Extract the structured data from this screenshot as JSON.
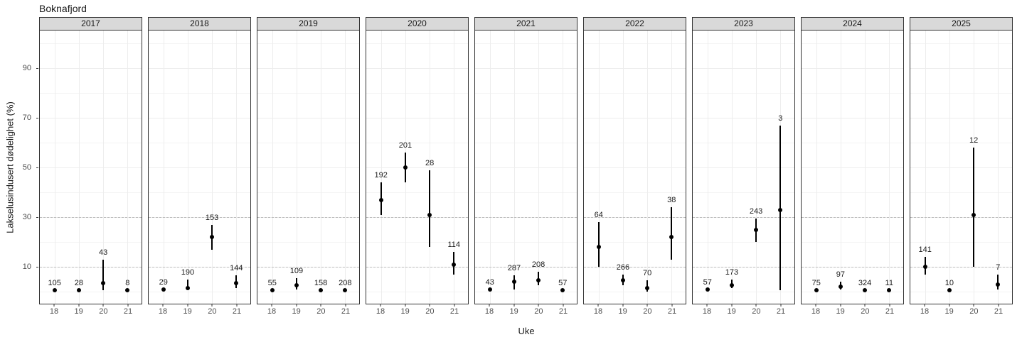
{
  "title": "Boknafjord",
  "y_axis": {
    "label": "Lakselusindusert dødelighet (%)",
    "tick_labels": [
      "90",
      "70",
      "50",
      "30",
      "10"
    ],
    "tick_values": [
      90,
      70,
      50,
      30,
      10
    ]
  },
  "x_axis": {
    "label": "Uke",
    "tick_labels": [
      "18",
      "19",
      "20",
      "21"
    ]
  },
  "colors": {
    "strip_background": "#d9d9d9",
    "panel_border": "#333333",
    "grid_major": "#ededed",
    "grid_minor": "#f4f4f4",
    "threshold_dashed": "#bdbdbd",
    "point": "#000000"
  },
  "chart_data": {
    "type": "scatter",
    "title": "Boknafjord",
    "xlabel": "Uke",
    "ylabel": "Lakselusindusert dødelighet (%)",
    "ylim": [
      0,
      105
    ],
    "x": [
      18,
      19,
      20,
      21
    ],
    "grid": true,
    "threshold_lines_dashed": [
      10,
      30
    ],
    "facets": [
      {
        "year": "2017",
        "points": [
          {
            "week": 18,
            "value": 0.5,
            "lo": 0.5,
            "hi": 0.5,
            "n": "105"
          },
          {
            "week": 19,
            "value": 0.5,
            "lo": 0.5,
            "hi": 0.5,
            "n": "28"
          },
          {
            "week": 20,
            "value": 3.5,
            "lo": 0.5,
            "hi": 13,
            "n": "43"
          },
          {
            "week": 21,
            "value": 0.5,
            "lo": 0.5,
            "hi": 0.5,
            "n": "8"
          }
        ]
      },
      {
        "year": "2018",
        "points": [
          {
            "week": 18,
            "value": 1,
            "lo": 1,
            "hi": 1,
            "n": "29"
          },
          {
            "week": 19,
            "value": 1.5,
            "lo": 1,
            "hi": 5,
            "n": "190"
          },
          {
            "week": 20,
            "value": 22,
            "lo": 17,
            "hi": 27,
            "n": "153"
          },
          {
            "week": 21,
            "value": 3.5,
            "lo": 1.5,
            "hi": 6.5,
            "n": "144"
          }
        ]
      },
      {
        "year": "2019",
        "points": [
          {
            "week": 18,
            "value": 0.5,
            "lo": 0.5,
            "hi": 0.5,
            "n": "55"
          },
          {
            "week": 19,
            "value": 2.5,
            "lo": 1,
            "hi": 5.5,
            "n": "109"
          },
          {
            "week": 20,
            "value": 0.5,
            "lo": 0.5,
            "hi": 0.5,
            "n": "158"
          },
          {
            "week": 21,
            "value": 0.5,
            "lo": 0.5,
            "hi": 0.5,
            "n": "208"
          }
        ]
      },
      {
        "year": "2020",
        "points": [
          {
            "week": 18,
            "value": 37,
            "lo": 31,
            "hi": 44,
            "n": "192"
          },
          {
            "week": 19,
            "value": 50,
            "lo": 44,
            "hi": 56,
            "n": "201"
          },
          {
            "week": 20,
            "value": 31,
            "lo": 18,
            "hi": 49,
            "n": "28"
          },
          {
            "week": 21,
            "value": 11,
            "lo": 7,
            "hi": 16,
            "n": "114"
          }
        ]
      },
      {
        "year": "2021",
        "points": [
          {
            "week": 18,
            "value": 1,
            "lo": 1,
            "hi": 1,
            "n": "43"
          },
          {
            "week": 19,
            "value": 4,
            "lo": 1,
            "hi": 6.5,
            "n": "287"
          },
          {
            "week": 20,
            "value": 4.5,
            "lo": 2.5,
            "hi": 8,
            "n": "208"
          },
          {
            "week": 21,
            "value": 0.5,
            "lo": 0.5,
            "hi": 0.5,
            "n": "57"
          }
        ]
      },
      {
        "year": "2022",
        "points": [
          {
            "week": 18,
            "value": 18,
            "lo": 10,
            "hi": 28,
            "n": "64"
          },
          {
            "week": 19,
            "value": 4.5,
            "lo": 2.5,
            "hi": 7,
            "n": "266"
          },
          {
            "week": 20,
            "value": 1.5,
            "lo": 0,
            "hi": 4.5,
            "n": "70"
          },
          {
            "week": 21,
            "value": 22,
            "lo": 13,
            "hi": 34,
            "n": "38"
          }
        ]
      },
      {
        "year": "2023",
        "points": [
          {
            "week": 18,
            "value": 1,
            "lo": 1,
            "hi": 1,
            "n": "57"
          },
          {
            "week": 19,
            "value": 2.5,
            "lo": 1.5,
            "hi": 5,
            "n": "173"
          },
          {
            "week": 20,
            "value": 25,
            "lo": 20,
            "hi": 29.5,
            "n": "243"
          },
          {
            "week": 21,
            "value": 33,
            "lo": 0.5,
            "hi": 67,
            "n": "3"
          }
        ]
      },
      {
        "year": "2024",
        "points": [
          {
            "week": 18,
            "value": 0.5,
            "lo": 0.5,
            "hi": 0.5,
            "n": "75"
          },
          {
            "week": 19,
            "value": 2,
            "lo": 1,
            "hi": 4,
            "n": "97"
          },
          {
            "week": 20,
            "value": 0.5,
            "lo": 0.5,
            "hi": 0.5,
            "n": "324"
          },
          {
            "week": 21,
            "value": 0.5,
            "lo": 0.5,
            "hi": 0.5,
            "n": "11"
          }
        ]
      },
      {
        "year": "2025",
        "points": [
          {
            "week": 18,
            "value": 10,
            "lo": 7,
            "hi": 14,
            "n": "141"
          },
          {
            "week": 19,
            "value": 0.5,
            "lo": 0.5,
            "hi": 0.5,
            "n": "10"
          },
          {
            "week": 20,
            "value": 31,
            "lo": 10,
            "hi": 58,
            "n": "12"
          },
          {
            "week": 21,
            "value": 3,
            "lo": 1,
            "hi": 7,
            "n": "7"
          }
        ]
      }
    ]
  }
}
